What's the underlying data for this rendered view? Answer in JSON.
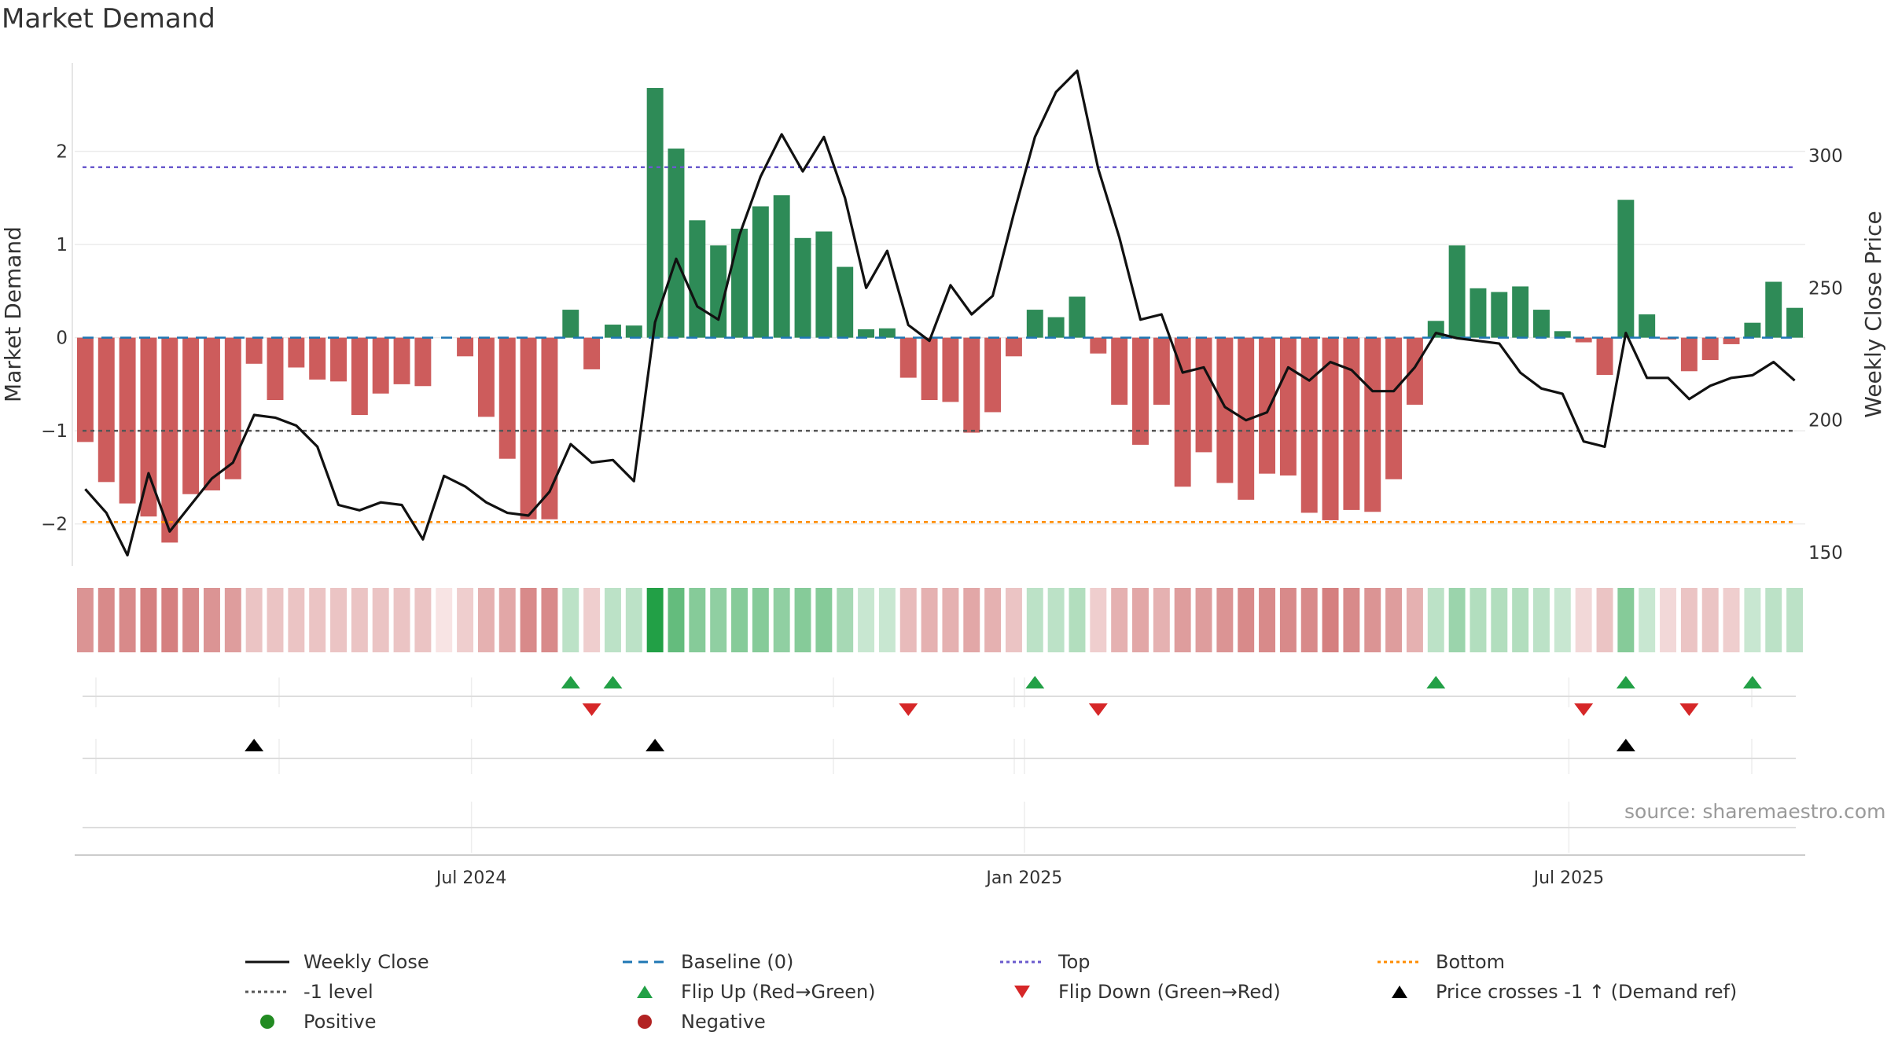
{
  "title": "Market Demand",
  "source": "source: sharemaestro.com",
  "colors": {
    "positive_bar": "#2e8b57",
    "negative_bar": "#cd5c5c",
    "weekly_close": "#111111",
    "baseline": "#1f77b4",
    "top": "#6a5acd",
    "bottom": "#ff8c00",
    "minus1": "#555555",
    "flip_up": "#22a046",
    "flip_down": "#d62728",
    "cross": "#000000",
    "positive_dot": "#228b22",
    "negative_dot": "#b22222"
  },
  "chart_data": {
    "type": "bar",
    "title": "Market Demand",
    "ylabel": "Market Demand",
    "y2label": "Weekly Close Price",
    "ylim": [
      -2.45,
      2.95
    ],
    "y2lim": [
      145,
      335
    ],
    "yticks": [
      2,
      1,
      0,
      -1,
      -2
    ],
    "ytick_labels": [
      "2",
      "1",
      "0",
      "−1",
      "−2"
    ],
    "y2ticks": [
      300,
      250,
      200,
      150
    ],
    "x_date_ticks": [
      {
        "index": 18.3,
        "label": "Jul 2024"
      },
      {
        "index": 44.5,
        "label": "Jan 2025"
      },
      {
        "index": 70.3,
        "label": "Jul 2025"
      }
    ],
    "reference_lines": {
      "baseline": 0,
      "top": 1.83,
      "minus1_level": -1,
      "bottom": -1.98
    },
    "demand": [
      -1.12,
      -1.55,
      -1.78,
      -1.92,
      -2.2,
      -1.68,
      -1.64,
      -1.52,
      -0.28,
      -0.67,
      -0.32,
      -0.45,
      -0.47,
      -0.83,
      -0.6,
      -0.5,
      -0.52,
      0,
      -0.2,
      -0.85,
      -1.3,
      -1.95,
      -1.95,
      0.3,
      -0.34,
      0.14,
      0.13,
      2.68,
      2.03,
      1.26,
      0.99,
      1.17,
      1.41,
      1.53,
      1.07,
      1.14,
      0.76,
      0.09,
      0.1,
      -0.43,
      -0.67,
      -0.69,
      -1.02,
      -0.8,
      -0.2,
      0.3,
      0.22,
      0.44,
      -0.17,
      -0.72,
      -1.15,
      -0.72,
      -1.6,
      -1.23,
      -1.56,
      -1.74,
      -1.46,
      -1.48,
      -1.88,
      -1.96,
      -1.85,
      -1.87,
      -1.52,
      -0.72,
      0.18,
      0.99,
      0.53,
      0.49,
      0.55,
      0.3,
      0.07,
      -0.05,
      -0.4,
      1.48,
      0.25,
      -0.02,
      -0.36,
      -0.24,
      -0.07,
      0.16,
      0.6,
      0.32
    ],
    "weekly_close": [
      174,
      165,
      149,
      180,
      158,
      168,
      178,
      184,
      202,
      201,
      198,
      190,
      168,
      166,
      169,
      168,
      155,
      179,
      175,
      169,
      165,
      164,
      173,
      191,
      184,
      185,
      177,
      237,
      261,
      243,
      238,
      270,
      292,
      308,
      294,
      307,
      284,
      250,
      264,
      236,
      230,
      251,
      240,
      247,
      278,
      307,
      324,
      332,
      295,
      269,
      238,
      240,
      218,
      220,
      205,
      200,
      203,
      220,
      215,
      222,
      219,
      211,
      211,
      220,
      233,
      231,
      230,
      229,
      218,
      212,
      210,
      192,
      190,
      233,
      216,
      216,
      208,
      213,
      216,
      217,
      222,
      215
    ],
    "heat_strip_alpha": [
      0.55,
      0.6,
      0.6,
      0.65,
      0.65,
      0.6,
      0.55,
      0.5,
      0.3,
      0.3,
      0.3,
      0.3,
      0.3,
      0.3,
      0.3,
      0.3,
      0.3,
      0.2,
      0.25,
      0.4,
      0.45,
      0.6,
      0.6,
      0.3,
      0.25,
      0.3,
      0.3,
      1.0,
      0.7,
      0.55,
      0.5,
      0.55,
      0.55,
      0.5,
      0.55,
      0.55,
      0.4,
      0.25,
      0.25,
      0.35,
      0.4,
      0.4,
      0.45,
      0.4,
      0.3,
      0.3,
      0.3,
      0.35,
      0.25,
      0.4,
      0.45,
      0.4,
      0.5,
      0.5,
      0.55,
      0.6,
      0.6,
      0.6,
      0.6,
      0.65,
      0.6,
      0.55,
      0.5,
      0.4,
      0.3,
      0.45,
      0.35,
      0.35,
      0.35,
      0.3,
      0.25,
      0.2,
      0.3,
      0.55,
      0.25,
      0.2,
      0.3,
      0.3,
      0.25,
      0.25,
      0.3,
      0.3
    ],
    "flip_up_indices": [
      23,
      25,
      45,
      64,
      73,
      79
    ],
    "flip_down_indices": [
      24,
      39,
      48,
      71,
      76
    ],
    "cross_indices": [
      8,
      27,
      73
    ],
    "legend": [
      "Weekly Close",
      "Baseline (0)",
      "Top",
      "Bottom",
      "-1 level",
      "Flip Up (Red→Green)",
      "Flip Down (Green→Red)",
      "Price crosses -1 ↑ (Demand ref)",
      "Positive",
      "Negative"
    ]
  }
}
